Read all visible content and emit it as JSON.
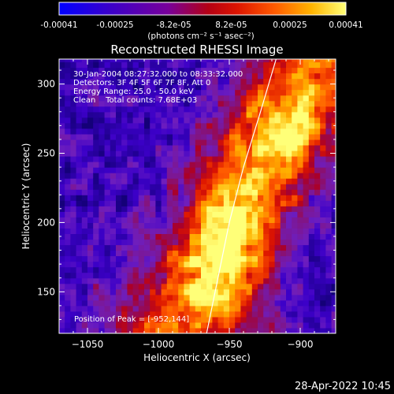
{
  "chart_data": {
    "type": "heatmap",
    "title": "Reconstructed RHESSI Image",
    "xlabel": "Heliocentric X (arcsec)",
    "ylabel": "Heliocentric Y (arcsec)",
    "xlim": [
      -1070,
      -875
    ],
    "ylim": [
      120,
      318
    ],
    "xticks": [
      -1050,
      -1000,
      -950,
      -900
    ],
    "yticks": [
      150,
      200,
      250,
      300
    ],
    "colorbar": {
      "min": -0.00041,
      "max": 0.00041,
      "ticks": [
        "-0.00041",
        "-0.00025",
        "-8.2e-05",
        "8.2e-05",
        "0.00025",
        "0.00041"
      ],
      "units": "(photons cm⁻² s⁻¹ asec⁻²)"
    },
    "annotations": [
      "30-Jan-2004 08:27:32.000 to 08:33:32.000",
      "Detectors: 3F 4F 5F 6F 7F 8F, Att 0",
      "Energy Range: 25.0 - 50.0 keV",
      "Clean    Total counts: 7.68E+03"
    ],
    "peak_label": "Position of Peak = [-952,144]",
    "peak_position": [
      -952,
      144
    ],
    "limb_curve": [
      [
        -966,
        120
      ],
      [
        -958,
        160
      ],
      [
        -950,
        200
      ],
      [
        -940,
        240
      ],
      [
        -928,
        280
      ],
      [
        -917,
        318
      ]
    ]
  },
  "footer": {
    "timestamp": "28-Apr-2022 10:45"
  }
}
